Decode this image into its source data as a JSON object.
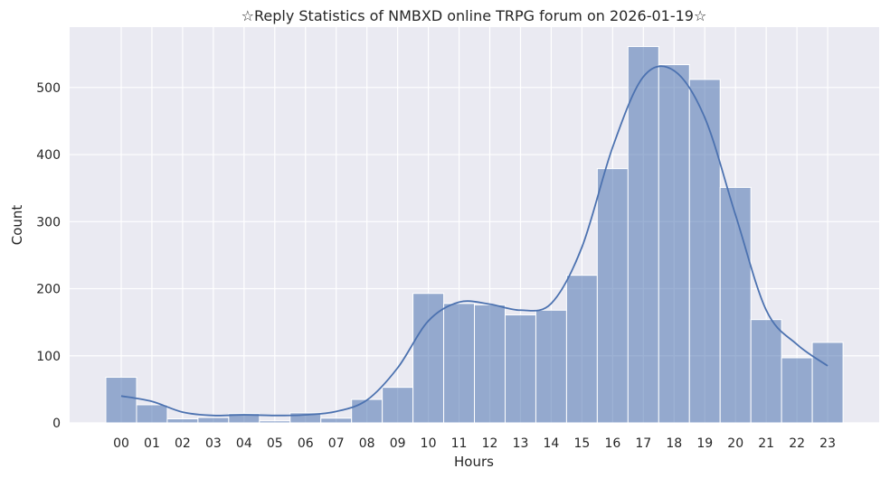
{
  "chart_data": {
    "type": "bar",
    "title": "☆Reply Statistics of NMBXD online TRPG forum on 2026-01-19☆",
    "xlabel": "Hours",
    "ylabel": "Count",
    "categories": [
      "00",
      "01",
      "02",
      "03",
      "04",
      "05",
      "06",
      "07",
      "08",
      "09",
      "10",
      "11",
      "12",
      "13",
      "14",
      "15",
      "16",
      "17",
      "18",
      "19",
      "20",
      "21",
      "22",
      "23"
    ],
    "values": [
      68,
      27,
      6,
      8,
      14,
      3,
      15,
      7,
      35,
      53,
      193,
      178,
      176,
      161,
      168,
      220,
      379,
      561,
      534,
      512,
      351,
      154,
      97,
      120
    ],
    "kde": [
      40,
      32,
      16,
      11,
      12,
      11,
      12,
      17,
      34,
      82,
      152,
      180,
      177,
      168,
      178,
      262,
      411,
      516,
      525,
      455,
      310,
      168,
      117,
      85
    ],
    "ylim": [
      0,
      590
    ],
    "yticks": [
      0,
      100,
      200,
      300,
      400,
      500
    ],
    "grid": true,
    "colors": {
      "bar": "#4c72b0",
      "background": "#eaeaf2",
      "grid": "#ffffff"
    }
  }
}
